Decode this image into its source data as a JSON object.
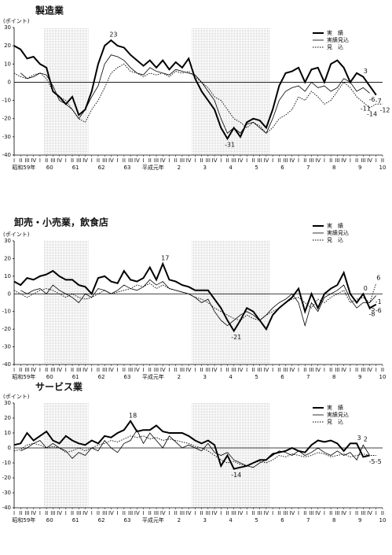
{
  "chart_data": [
    {
      "type": "line",
      "title": "製造業",
      "y_label": "(ポイント)",
      "ylim": [
        -40,
        30
      ],
      "yticks": [
        30,
        20,
        10,
        0,
        -10,
        -20,
        -30,
        -40
      ],
      "categories": [
        "I",
        "II",
        "III",
        "IV",
        "I",
        "II",
        "III",
        "IV",
        "I",
        "II",
        "III",
        "IV",
        "I",
        "II",
        "III",
        "IV",
        "I",
        "II",
        "III",
        "IV",
        "I",
        "II",
        "III",
        "IV",
        "I",
        "II",
        "III",
        "IV",
        "I",
        "II",
        "III",
        "IV",
        "I",
        "II",
        "III",
        "IV",
        "I",
        "II",
        "III",
        "IV",
        "I",
        "II",
        "III",
        "IV",
        "I",
        "II",
        "III",
        "IV",
        "I",
        "II",
        "III",
        "IV",
        "I",
        "II",
        "III",
        "IV",
        "I",
        "II"
      ],
      "year_labels": [
        "昭和59年",
        "60",
        "61",
        "62",
        "63",
        "平成元年",
        "2",
        "3",
        "4",
        "5",
        "6",
        "7",
        "8",
        "9",
        "10"
      ],
      "series": [
        {
          "name": "実　績",
          "color": "#000000",
          "style": "thick",
          "label_at": [
            15,
            33,
            54,
            56
          ],
          "values": [
            20,
            18,
            13,
            14,
            10,
            8,
            -5,
            -8,
            -12,
            -8,
            -18,
            -15,
            -5,
            10,
            20,
            23,
            20,
            19,
            15,
            12,
            9,
            12,
            8,
            12,
            7,
            11,
            8,
            13,
            2,
            -5,
            -10,
            -15,
            -25,
            -31,
            -25,
            -30,
            -22,
            -20,
            -21,
            -25,
            -15,
            -2,
            5,
            6,
            8,
            0,
            7,
            8,
            0,
            10,
            12,
            8,
            0,
            5,
            3,
            -2,
            -7,
            null
          ]
        },
        {
          "name": "実績見込",
          "color": "#000000",
          "style": "thin",
          "label_at": [
            55
          ],
          "values": [
            null,
            5,
            2,
            3,
            5,
            4,
            -2,
            -10,
            -12,
            -15,
            -20,
            -15,
            -8,
            -2,
            10,
            15,
            14,
            12,
            8,
            5,
            4,
            8,
            6,
            5,
            4,
            7,
            6,
            5,
            4,
            0,
            -5,
            -10,
            -20,
            -28,
            -25,
            -28,
            -23,
            -22,
            -25,
            -28,
            -20,
            -10,
            -5,
            -3,
            -2,
            -5,
            0,
            -3,
            -2,
            -5,
            -3,
            2,
            0,
            -5,
            -3,
            -6,
            null,
            null
          ]
        },
        {
          "name": "見　込",
          "color": "#000000",
          "style": "dotted",
          "label_at": [
            54,
            55,
            57
          ],
          "values": [
            5,
            3,
            2,
            4,
            5,
            2,
            -5,
            -8,
            -10,
            -15,
            -20,
            -22,
            -15,
            -10,
            -3,
            5,
            8,
            10,
            6,
            5,
            3,
            5,
            4,
            5,
            3,
            6,
            5,
            6,
            3,
            0,
            -3,
            -8,
            -10,
            -15,
            -20,
            -22,
            -25,
            -22,
            -24,
            -28,
            -25,
            -20,
            -18,
            -15,
            -8,
            -10,
            -5,
            -8,
            -12,
            -10,
            -5,
            0,
            -3,
            -8,
            -11,
            -14,
            -12,
            -12
          ]
        }
      ]
    },
    {
      "type": "line",
      "title": "卸売・小売業，飲食店",
      "y_label": "(ポイント)",
      "ylim": [
        -40,
        30
      ],
      "yticks": [
        30,
        20,
        10,
        0,
        -10,
        -20,
        -30,
        -40
      ],
      "categories": [
        "I",
        "II",
        "III",
        "IV",
        "I",
        "II",
        "III",
        "IV",
        "I",
        "II",
        "III",
        "IV",
        "I",
        "II",
        "III",
        "IV",
        "I",
        "II",
        "III",
        "IV",
        "I",
        "II",
        "III",
        "IV",
        "I",
        "II",
        "III",
        "IV",
        "I",
        "II",
        "III",
        "IV",
        "I",
        "II",
        "III",
        "IV",
        "I",
        "II",
        "III",
        "IV",
        "I",
        "II",
        "III",
        "IV",
        "I",
        "II",
        "III",
        "IV",
        "I",
        "II",
        "III",
        "IV",
        "I",
        "II",
        "III",
        "IV",
        "I",
        "II"
      ],
      "year_labels": [
        "昭和59年",
        "60",
        "61",
        "62",
        "63",
        "平成元年",
        "2",
        "3",
        "4",
        "5",
        "6",
        "7",
        "8",
        "9",
        "10"
      ],
      "series": [
        {
          "name": "実　績",
          "color": "#000000",
          "style": "thick",
          "label_at": [
            23,
            34,
            54,
            55,
            56
          ],
          "values": [
            7,
            5,
            9,
            8,
            10,
            11,
            13,
            10,
            8,
            8,
            5,
            4,
            0,
            9,
            10,
            7,
            6,
            13,
            8,
            7,
            9,
            15,
            8,
            17,
            8,
            7,
            5,
            4,
            2,
            2,
            2,
            -3,
            -8,
            -15,
            -21,
            -15,
            -8,
            -10,
            -15,
            -20,
            -12,
            -8,
            -5,
            -2,
            3,
            -10,
            0,
            -8,
            0,
            3,
            5,
            12,
            0,
            -5,
            0,
            -8,
            -6,
            null
          ]
        },
        {
          "name": "実績見込",
          "color": "#000000",
          "style": "thin",
          "label_at": [
            55,
            56
          ],
          "values": [
            null,
            2,
            0,
            2,
            3,
            0,
            5,
            2,
            0,
            -2,
            -5,
            0,
            -2,
            3,
            2,
            0,
            2,
            5,
            3,
            2,
            4,
            8,
            5,
            7,
            3,
            2,
            1,
            0,
            -2,
            -5,
            -3,
            -10,
            -15,
            -18,
            -15,
            -12,
            -10,
            -12,
            -15,
            -12,
            -8,
            -5,
            -3,
            0,
            -5,
            -18,
            -5,
            -10,
            -2,
            0,
            2,
            5,
            -3,
            -8,
            -5,
            -5,
            -1,
            null
          ]
        },
        {
          "name": "見　込",
          "color": "#000000",
          "style": "dotted",
          "label_at": [
            56
          ],
          "values": [
            2,
            0,
            -2,
            0,
            2,
            3,
            2,
            0,
            -2,
            0,
            -2,
            -3,
            -2,
            0,
            2,
            0,
            1,
            2,
            3,
            5,
            4,
            6,
            3,
            5,
            3,
            2,
            1,
            0,
            -2,
            -3,
            -5,
            -8,
            -10,
            -12,
            -14,
            -15,
            -12,
            -14,
            -15,
            -12,
            -10,
            -8,
            -5,
            -3,
            -2,
            -5,
            -8,
            -3,
            -5,
            -2,
            0,
            2,
            -5,
            -3,
            -2,
            -5,
            6,
            null
          ]
        }
      ]
    },
    {
      "type": "line",
      "title": "サービス業",
      "y_label": "(ポイント)",
      "ylim": [
        -40,
        30
      ],
      "yticks": [
        30,
        20,
        10,
        0,
        -10,
        -20,
        -30,
        -40
      ],
      "categories": [
        "I",
        "II",
        "III",
        "IV",
        "I",
        "II",
        "III",
        "IV",
        "I",
        "II",
        "III",
        "IV",
        "I",
        "II",
        "III",
        "IV",
        "I",
        "II",
        "III",
        "IV",
        "I",
        "II",
        "III",
        "IV",
        "I",
        "II",
        "III",
        "IV",
        "I",
        "II",
        "III",
        "IV",
        "I",
        "II",
        "III",
        "IV",
        "I",
        "II",
        "III",
        "IV",
        "I",
        "II",
        "III",
        "IV",
        "I",
        "II",
        "III",
        "IV",
        "I",
        "II",
        "III",
        "IV",
        "I",
        "II",
        "III",
        "IV",
        "I",
        "II"
      ],
      "year_labels": [
        "昭和59年",
        "60",
        "61",
        "62",
        "63",
        "平成元年",
        "2",
        "3",
        "4",
        "5",
        "6",
        "7",
        "8",
        "9",
        "10"
      ],
      "series": [
        {
          "name": "実　績",
          "color": "#000000",
          "style": "thick",
          "label_at": [
            18,
            34,
            53
          ],
          "values": [
            2,
            3,
            10,
            5,
            8,
            11,
            5,
            3,
            8,
            5,
            3,
            2,
            5,
            3,
            8,
            7,
            10,
            12,
            18,
            11,
            12,
            12,
            15,
            11,
            10,
            10,
            10,
            8,
            5,
            3,
            5,
            2,
            -12,
            -5,
            -14,
            -13,
            -12,
            -10,
            -8,
            -8,
            -4,
            -3,
            -2,
            0,
            -2,
            -3,
            2,
            5,
            4,
            5,
            3,
            -2,
            3,
            3,
            -6,
            -5,
            null,
            null
          ]
        },
        {
          "name": "実績見込",
          "color": "#000000",
          "style": "thin",
          "label_at": [
            54,
            55
          ],
          "values": [
            null,
            -2,
            0,
            3,
            5,
            0,
            3,
            0,
            -2,
            -7,
            -3,
            -5,
            0,
            -2,
            5,
            0,
            -3,
            3,
            5,
            12,
            3,
            10,
            5,
            0,
            8,
            4,
            0,
            2,
            0,
            -2,
            3,
            -3,
            -5,
            -3,
            -8,
            -10,
            -12,
            -13,
            -10,
            -8,
            -5,
            -2,
            -3,
            -5,
            -2,
            -5,
            -3,
            0,
            -3,
            -5,
            -2,
            -5,
            -3,
            -8,
            2,
            -5,
            null,
            null
          ]
        },
        {
          "name": "見　込",
          "color": "#000000",
          "style": "dotted",
          "label_at": [
            56
          ],
          "values": [
            -2,
            -1,
            2,
            3,
            2,
            0,
            1,
            0,
            -3,
            -2,
            0,
            -2,
            0,
            2,
            3,
            5,
            4,
            6,
            8,
            7,
            8,
            6,
            7,
            5,
            6,
            5,
            4,
            3,
            1,
            0,
            -2,
            -5,
            -8,
            -10,
            -9,
            -11,
            -12,
            -10,
            -9,
            -10,
            -8,
            -5,
            -6,
            -4,
            -5,
            -6,
            -5,
            -3,
            -4,
            -6,
            -5,
            -4,
            -6,
            -5,
            -4,
            -5,
            -5,
            null
          ]
        }
      ]
    }
  ]
}
